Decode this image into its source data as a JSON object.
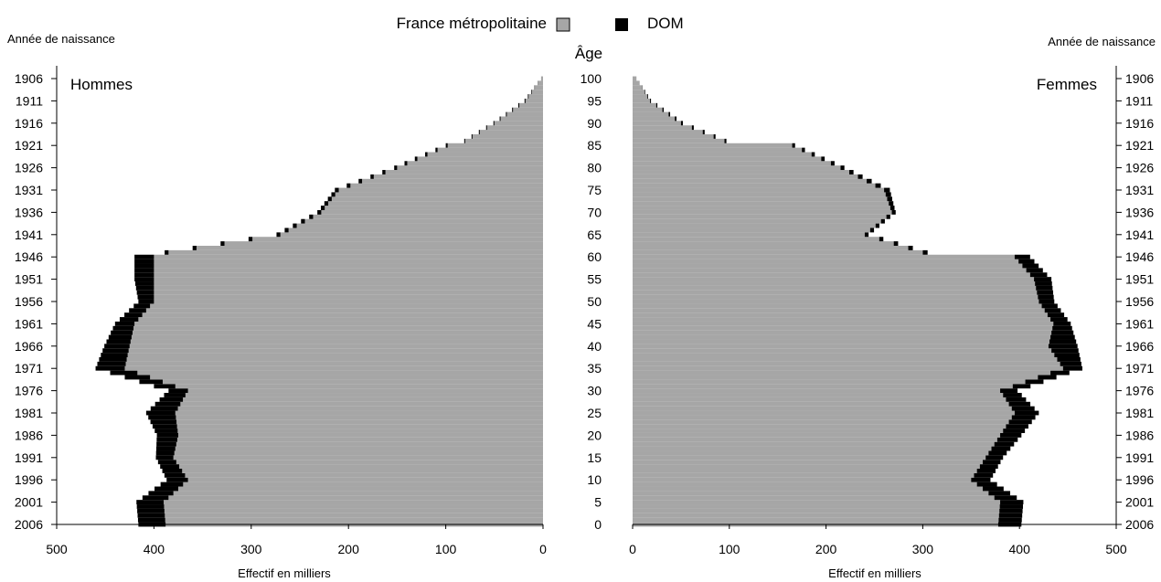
{
  "legend": {
    "items": [
      {
        "label": "France métropolitaine",
        "color": "#a6a6a6"
      },
      {
        "label": "DOM",
        "color": "#000000"
      }
    ]
  },
  "labels": {
    "year_axis_left": "Année de naissance",
    "year_axis_right": "Année de naissance",
    "age_axis": "Âge",
    "x_axis_left": "Effectif en milliers",
    "x_axis_right": "Effectif en milliers"
  },
  "chart_data": {
    "type": "population-pyramid",
    "age_range": [
      0,
      100
    ],
    "xlim": [
      0,
      500
    ],
    "x_ticks": [
      0,
      100,
      200,
      300,
      400,
      500
    ],
    "age_ticks": [
      0,
      5,
      10,
      15,
      20,
      25,
      30,
      35,
      40,
      45,
      50,
      55,
      60,
      65,
      70,
      75,
      80,
      85,
      90,
      95,
      100
    ],
    "birth_year_ticks": [
      "2006",
      "2001",
      "1996",
      "1991",
      "1986",
      "1981",
      "1976",
      "1971",
      "1966",
      "1961",
      "1956",
      "1951",
      "1946",
      "1941",
      "1936",
      "1931",
      "1926",
      "1921",
      "1916",
      "1911",
      "1906"
    ],
    "series_keys": [
      "France métropolitaine",
      "DOM"
    ],
    "panels": [
      {
        "name": "Hommes",
        "side": "left",
        "ages": [
          0,
          5,
          10,
          15,
          20,
          25,
          30,
          35,
          40,
          45,
          50,
          55,
          60,
          61,
          65,
          70,
          75,
          80,
          85,
          86,
          90,
          95,
          100
        ],
        "metro": [
          388,
          390,
          365,
          380,
          375,
          378,
          365,
          430,
          425,
          420,
          400,
          400,
          400,
          385,
          270,
          228,
          210,
          150,
          98,
          80,
          50,
          18,
          2
        ],
        "dom": [
          28,
          28,
          22,
          18,
          22,
          30,
          20,
          30,
          26,
          20,
          16,
          20,
          20,
          4,
          4,
          4,
          4,
          3,
          2,
          1,
          1,
          1,
          0
        ]
      },
      {
        "name": "Femmes",
        "side": "right",
        "ages": [
          0,
          5,
          10,
          15,
          20,
          25,
          30,
          35,
          40,
          45,
          50,
          55,
          60,
          61,
          65,
          70,
          75,
          80,
          85,
          86,
          90,
          95,
          100
        ],
        "metro": [
          378,
          380,
          350,
          365,
          380,
          395,
          380,
          445,
          430,
          435,
          420,
          415,
          395,
          300,
          240,
          268,
          260,
          215,
          165,
          95,
          50,
          18,
          4
        ],
        "dom": [
          24,
          24,
          20,
          18,
          22,
          25,
          18,
          20,
          30,
          18,
          16,
          18,
          16,
          5,
          4,
          4,
          6,
          4,
          3,
          2,
          2,
          1,
          0
        ]
      }
    ]
  }
}
